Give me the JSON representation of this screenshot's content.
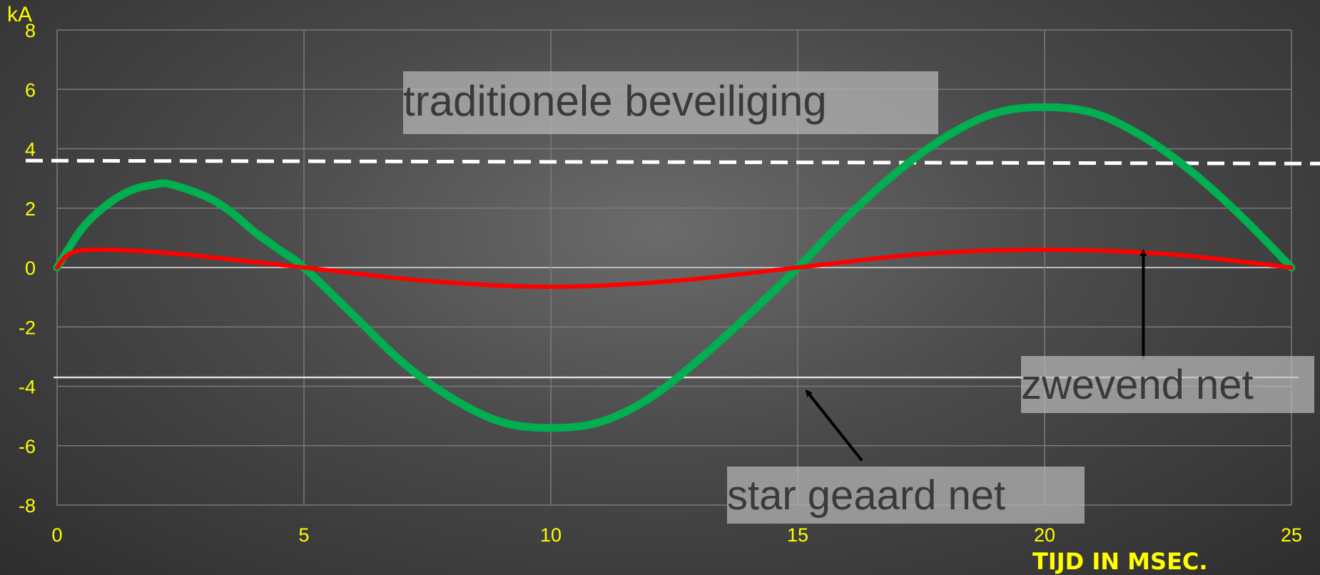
{
  "colors": {
    "tick": "#FFFF00",
    "grid": "#7a7a7a",
    "zero_line": "#bdbdbd",
    "green_series": "#00B050",
    "red_series": "#FF0000",
    "threshold_upper": "#FFFFFF",
    "threshold_lower": "#DDDDDD",
    "arrow": "#000000"
  },
  "labels": {
    "box_traditional": "traditionele beveiliging",
    "box_floating": "zwevend net",
    "box_grounded": "star geaard net"
  },
  "chart_data": {
    "type": "line",
    "unit_label": "kA",
    "xlabel": "TIJD IN MSEC.",
    "ylabel": "",
    "xlim": [
      0,
      25
    ],
    "ylim": [
      -8,
      8
    ],
    "x_ticks": [
      0,
      5,
      10,
      15,
      20,
      25
    ],
    "y_ticks": [
      8,
      6,
      4,
      2,
      0,
      -2,
      -4,
      -6,
      -8
    ],
    "grid": true,
    "legend": "none",
    "series": [
      {
        "color": "#00B050",
        "style": "thick-dotted",
        "x": [
          0,
          0.5,
          1,
          1.5,
          2,
          2.3,
          3,
          3.5,
          4,
          4.5,
          5,
          6,
          7,
          8,
          9,
          10,
          11,
          12,
          13,
          14,
          15,
          16,
          17,
          18,
          19,
          20,
          21,
          22,
          23,
          24,
          25
        ],
        "y": [
          0,
          1.3,
          2.1,
          2.6,
          2.8,
          2.8,
          2.4,
          1.9,
          1.2,
          0.6,
          0,
          -1.6,
          -3.2,
          -4.4,
          -5.2,
          -5.4,
          -5.2,
          -4.4,
          -3.1,
          -1.6,
          0,
          1.7,
          3.2,
          4.4,
          5.2,
          5.4,
          5.2,
          4.4,
          3.2,
          1.7,
          0
        ]
      },
      {
        "color": "#FF0000",
        "style": "solid",
        "x": [
          0,
          0.3,
          1,
          2.5,
          5,
          7.5,
          10,
          12.5,
          15,
          17.5,
          20,
          22.5,
          25
        ],
        "y": [
          0,
          0.5,
          0.6,
          0.45,
          0,
          -0.45,
          -0.65,
          -0.45,
          0,
          0.45,
          0.6,
          0.45,
          0
        ]
      }
    ],
    "reference_lines": [
      {
        "style": "dashed",
        "y_start": 3.6,
        "y_end": 3.5
      },
      {
        "style": "solid",
        "y_start": -3.7,
        "y_end": -3.7
      }
    ],
    "annotations": [
      {
        "label_ref": "box_floating",
        "arrow_from": [
          22,
          -3.1
        ],
        "arrow_to": [
          22,
          0.5
        ]
      },
      {
        "label_ref": "box_grounded",
        "arrow_from": [
          16.3,
          -6.5
        ],
        "arrow_to": [
          15.2,
          -4.2
        ]
      }
    ]
  }
}
